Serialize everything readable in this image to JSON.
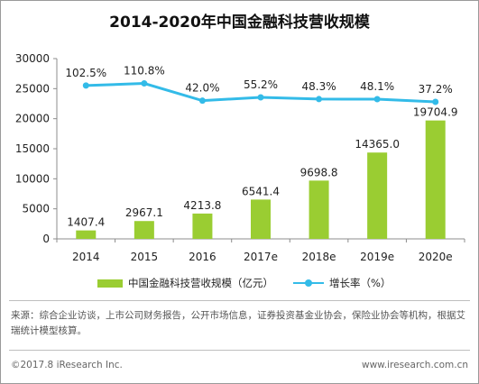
{
  "title": "2014-2020年中国金融科技营收规模",
  "chart_data": {
    "type": "bar",
    "categories": [
      "2014",
      "2015",
      "2016",
      "2017e",
      "2018e",
      "2019e",
      "2020e"
    ],
    "series": [
      {
        "name": "中国金融科技营收规模（亿元）",
        "type": "bar",
        "axis": "left",
        "values": [
          1407.4,
          2967.1,
          4213.8,
          6541.4,
          9698.8,
          14365.0,
          19704.9
        ],
        "labels": [
          "1407.4",
          "2967.1",
          "4213.8",
          "6541.4",
          "9698.8",
          "14365.0",
          "19704.9"
        ],
        "color": "#9ACD32"
      },
      {
        "name": "增长率（%）",
        "type": "line",
        "values": [
          102.5,
          110.8,
          42.0,
          55.2,
          48.3,
          48.1,
          37.2
        ],
        "labels": [
          "102.5%",
          "110.8%",
          "42.0%",
          "55.2%",
          "48.3%",
          "48.1%",
          "37.2%"
        ],
        "color": "#33BBE8"
      }
    ],
    "ylim": [
      0,
      30000
    ],
    "yticks": [
      "0",
      "5000",
      "10000",
      "15000",
      "20000",
      "25000",
      "30000"
    ],
    "grid": false,
    "legend": "bottom"
  },
  "legend": {
    "bar_label": "中国金融科技营收规模（亿元）",
    "line_label": "增长率（%）"
  },
  "source": "来源：综合企业访谈，上市公司财务报告，公开市场信息，证券投资基金业协会，保险业协会等机构，根据艾瑞统计模型核算。",
  "footer": {
    "copyright": "©2017.8 iResearch Inc.",
    "website": "www.iresearch.com.cn"
  }
}
